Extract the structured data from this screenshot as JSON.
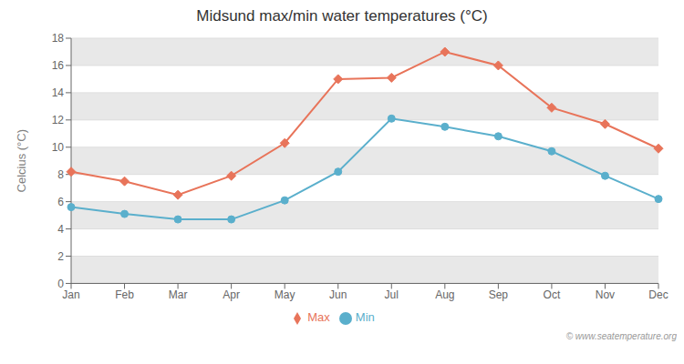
{
  "chart_data": {
    "type": "line",
    "title": "Midsund max/min water temperatures (°C)",
    "categories": [
      "Jan",
      "Feb",
      "Mar",
      "Apr",
      "May",
      "Jun",
      "Jul",
      "Aug",
      "Sep",
      "Oct",
      "Nov",
      "Dec"
    ],
    "ylabel": "Celcius (°C)",
    "series": [
      {
        "name": "Max",
        "color": "#e8745a",
        "marker": "diamond",
        "values": [
          8.2,
          7.5,
          6.5,
          7.9,
          10.3,
          15.0,
          15.1,
          17.0,
          16.0,
          12.9,
          11.7,
          9.9
        ]
      },
      {
        "name": "Min",
        "color": "#5aafcc",
        "marker": "circle",
        "values": [
          5.6,
          5.1,
          4.7,
          4.7,
          6.1,
          8.2,
          12.1,
          11.5,
          10.8,
          9.7,
          7.9,
          6.2
        ]
      }
    ],
    "ylim": [
      0,
      18
    ],
    "yticks": [
      0,
      2,
      4,
      6,
      8,
      10,
      12,
      14,
      16,
      18
    ],
    "grid": true,
    "legend": "bottom",
    "annotations": [
      "© www.seatemperature.org"
    ]
  }
}
